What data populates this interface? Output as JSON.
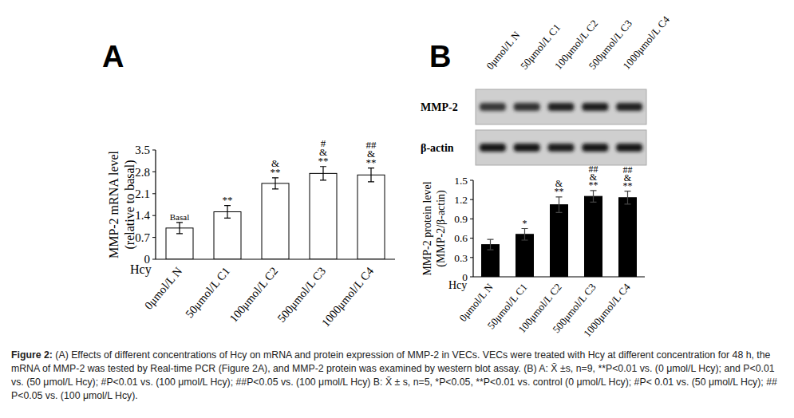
{
  "chart_data": [
    {
      "type": "bar",
      "panel": "A",
      "categories": [
        "0μmol/L N",
        "50μmol/L C1",
        "100μmol/L C2",
        "500μmol/L C3",
        "1000μmol/L C4"
      ],
      "values": [
        1.0,
        1.52,
        2.43,
        2.75,
        2.7
      ],
      "errors": [
        0.18,
        0.2,
        0.18,
        0.22,
        0.22
      ],
      "annotations": [
        [
          "Basal"
        ],
        [
          "**"
        ],
        [
          "&",
          "**"
        ],
        [
          "#",
          "&",
          "**"
        ],
        [
          "##",
          "&",
          "**"
        ]
      ],
      "y_label": [
        "MMP-2 mRNA level",
        "(relative to basal)"
      ],
      "x_label": "Hcy",
      "color": "#ffffff",
      "ylim": [
        0,
        3.5
      ],
      "yticks": [
        0,
        0.7,
        1.4,
        2.1,
        2.8,
        3.5
      ],
      "grid": false
    },
    {
      "type": "bar",
      "panel": "B",
      "categories": [
        "0μmol/L N",
        "50μmol/L C1",
        "100μmol/L C2",
        "500μmol/L C3",
        "1000μmol/L C4"
      ],
      "values": [
        0.5,
        0.66,
        1.12,
        1.25,
        1.23
      ],
      "errors": [
        0.08,
        0.09,
        0.12,
        0.09,
        0.1
      ],
      "annotations": [
        [],
        [
          "*"
        ],
        [
          "&",
          "**"
        ],
        [
          "##",
          "&",
          "**"
        ],
        [
          "##",
          "&",
          "**"
        ]
      ],
      "y_label": [
        "MMP-2 protein level",
        "(MMP-2/β-actin)"
      ],
      "x_label": "Hcy",
      "color": "#000000",
      "ylim": [
        0,
        1.5
      ],
      "yticks": [
        0,
        0.3,
        0.6,
        0.9,
        1.2,
        1.5
      ],
      "grid": false
    }
  ],
  "blot": {
    "lanes": [
      "0μmol/L N",
      "50μmol/L C1",
      "100μmol/L C2",
      "500μmol/L C3",
      "1000μmol/L C4"
    ],
    "proteins": [
      "MMP-2",
      "β-actin"
    ]
  },
  "caption": {
    "label": "Figure 2:",
    "text": "(A) Effects of different concentrations of Hcy on mRNA and protein expression of MMP-2 in VECs. VECs were treated with Hcy at different concentration for 48 h, the mRNA of MMP-2 was tested by Real-time PCR (Figure 2A), and MMP-2 protein was examined by western blot assay. (B) A: X̄ ±s, n=9, **P<0.01 vs. (0 μmol/L Hcy); and P<0.01 vs. (50 μmol/L Hcy); #P<0.01 vs. (100 μmol/L Hcy); ##P<0.05 vs. (100 μmol/L Hcy) B: X̄ ± s, n=5, *P<0.05, **P<0.01 vs. control (0 μmol/L Hcy); #P< 0.01 vs. (50 μmol/L Hcy); ## P<0.05 vs. (100 μmol/L Hcy)."
  }
}
